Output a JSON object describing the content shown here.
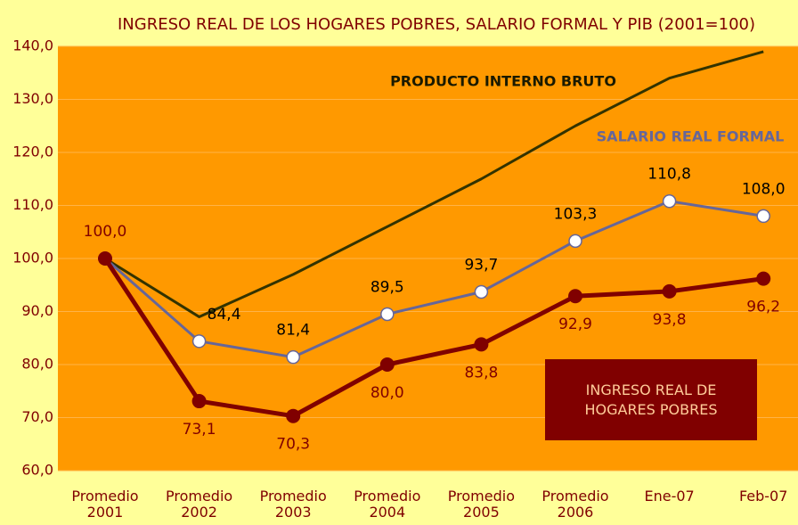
{
  "chart_data": {
    "type": "line",
    "title": "INGRESO REAL DE LOS HOGARES POBRES, SALARIO FORMAL Y PIB (2001=100)",
    "categories": [
      "Promedio 2001",
      "Promedio 2002",
      "Promedio 2003",
      "Promedio 2004",
      "Promedio 2005",
      "Promedio 2006",
      "Ene-07",
      "Feb-07"
    ],
    "series": [
      {
        "name": "PRODUCTO INTERNO BRUTO",
        "color": "#333300",
        "values": [
          100,
          89,
          97,
          106,
          115,
          125,
          134,
          139
        ]
      },
      {
        "name": "SALARIO REAL FORMAL",
        "color": "#666699",
        "values": [
          100,
          84.4,
          81.4,
          89.5,
          93.7,
          103.3,
          110.8,
          108.0
        ],
        "value_labels": [
          null,
          "84,4",
          "81,4",
          "89,5",
          "93,7",
          "103,3",
          "110,8",
          "108,0"
        ]
      },
      {
        "name": "INGRESO REAL DE HOGARES POBRES",
        "color": "#800000",
        "values": [
          100,
          73.1,
          70.3,
          80.0,
          83.8,
          92.9,
          93.8,
          96.2
        ],
        "value_labels": [
          "100,0",
          "73,1",
          "70,3",
          "80,0",
          "83,8",
          "92,9",
          "93,8",
          "96,2"
        ]
      }
    ],
    "ylim": [
      60,
      140
    ],
    "yticks": [
      {
        "value": 60,
        "label": "60,0"
      },
      {
        "value": 70,
        "label": "70,0"
      },
      {
        "value": 80,
        "label": "80,0"
      },
      {
        "value": 90,
        "label": "90,0"
      },
      {
        "value": 100,
        "label": "100,0"
      },
      {
        "value": 110,
        "label": "110,0"
      },
      {
        "value": 120,
        "label": "120,0"
      },
      {
        "value": 130,
        "label": "130,0"
      },
      {
        "value": 140,
        "label": "140,0"
      }
    ],
    "grid": true
  }
}
